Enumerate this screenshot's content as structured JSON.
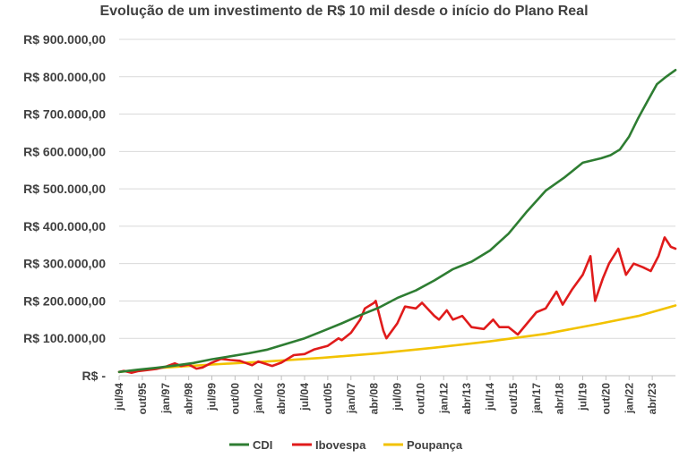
{
  "chart_data": {
    "type": "line",
    "title": "Evolução de um investimento de R$ 10 mil desde o início do Plano Real",
    "xlabel": "",
    "ylabel": "",
    "ylim": [
      0,
      900000
    ],
    "xlim": [
      "1994-07",
      "2024-07"
    ],
    "grid": true,
    "legend": "bottom",
    "y_ticks": [
      {
        "value": 0,
        "label": "R$ -"
      },
      {
        "value": 100000,
        "label": "R$ 100.000,00"
      },
      {
        "value": 200000,
        "label": "R$ 200.000,00"
      },
      {
        "value": 300000,
        "label": "R$ 300.000,00"
      },
      {
        "value": 400000,
        "label": "R$ 400.000,00"
      },
      {
        "value": 500000,
        "label": "R$ 500.000,00"
      },
      {
        "value": 600000,
        "label": "R$ 600.000,00"
      },
      {
        "value": 700000,
        "label": "R$ 700.000,00"
      },
      {
        "value": 800000,
        "label": "R$ 800.000,00"
      },
      {
        "value": 900000,
        "label": "R$ 900.000,00"
      }
    ],
    "x_ticks": [
      {
        "date": "1994-07",
        "label": "jul/94"
      },
      {
        "date": "1995-10",
        "label": "out/95"
      },
      {
        "date": "1997-01",
        "label": "jan/97"
      },
      {
        "date": "1998-04",
        "label": "abr/98"
      },
      {
        "date": "1999-07",
        "label": "jul/99"
      },
      {
        "date": "2000-10",
        "label": "out/00"
      },
      {
        "date": "2002-01",
        "label": "jan/02"
      },
      {
        "date": "2003-04",
        "label": "abr/03"
      },
      {
        "date": "2004-07",
        "label": "jul/04"
      },
      {
        "date": "2005-10",
        "label": "out/05"
      },
      {
        "date": "2007-01",
        "label": "jan/07"
      },
      {
        "date": "2008-04",
        "label": "abr/08"
      },
      {
        "date": "2009-07",
        "label": "jul/09"
      },
      {
        "date": "2010-10",
        "label": "out/10"
      },
      {
        "date": "2012-01",
        "label": "jan/12"
      },
      {
        "date": "2013-04",
        "label": "abr/13"
      },
      {
        "date": "2014-07",
        "label": "jul/14"
      },
      {
        "date": "2015-10",
        "label": "out/15"
      },
      {
        "date": "2017-01",
        "label": "jan/17"
      },
      {
        "date": "2018-04",
        "label": "abr/18"
      },
      {
        "date": "2019-07",
        "label": "jul/19"
      },
      {
        "date": "2020-10",
        "label": "out/20"
      },
      {
        "date": "2022-01",
        "label": "jan/22"
      },
      {
        "date": "2023-04",
        "label": "abr/23"
      }
    ],
    "series": [
      {
        "name": "CDI",
        "color": "#2e7d32",
        "points": [
          [
            "1994-07",
            10000
          ],
          [
            "1995-07",
            16000
          ],
          [
            "1996-07",
            21000
          ],
          [
            "1997-07",
            27000
          ],
          [
            "1998-07",
            34000
          ],
          [
            "1999-07",
            44000
          ],
          [
            "2000-07",
            52000
          ],
          [
            "2001-07",
            60000
          ],
          [
            "2002-07",
            70000
          ],
          [
            "2003-07",
            85000
          ],
          [
            "2004-07",
            100000
          ],
          [
            "2005-07",
            120000
          ],
          [
            "2006-07",
            140000
          ],
          [
            "2007-07",
            162000
          ],
          [
            "2008-07",
            182000
          ],
          [
            "2009-07",
            208000
          ],
          [
            "2010-07",
            228000
          ],
          [
            "2011-07",
            255000
          ],
          [
            "2012-07",
            285000
          ],
          [
            "2013-07",
            305000
          ],
          [
            "2014-07",
            335000
          ],
          [
            "2015-07",
            380000
          ],
          [
            "2016-07",
            440000
          ],
          [
            "2017-07",
            495000
          ],
          [
            "2018-07",
            530000
          ],
          [
            "2019-07",
            570000
          ],
          [
            "2020-07",
            582000
          ],
          [
            "2021-01",
            590000
          ],
          [
            "2021-07",
            605000
          ],
          [
            "2022-01",
            640000
          ],
          [
            "2022-07",
            690000
          ],
          [
            "2023-01",
            735000
          ],
          [
            "2023-07",
            780000
          ],
          [
            "2024-01",
            800000
          ],
          [
            "2024-07",
            818000
          ]
        ]
      },
      {
        "name": "Ibovespa",
        "color": "#e01b1b",
        "points": [
          [
            "1994-07",
            10000
          ],
          [
            "1994-10",
            13000
          ],
          [
            "1995-03",
            8000
          ],
          [
            "1995-07",
            12000
          ],
          [
            "1996-01",
            15000
          ],
          [
            "1996-07",
            18000
          ],
          [
            "1997-01",
            24000
          ],
          [
            "1997-07",
            33000
          ],
          [
            "1997-11",
            26000
          ],
          [
            "1998-04",
            30000
          ],
          [
            "1998-09",
            19000
          ],
          [
            "1999-01",
            22000
          ],
          [
            "1999-07",
            35000
          ],
          [
            "2000-01",
            45000
          ],
          [
            "2000-07",
            42000
          ],
          [
            "2001-01",
            40000
          ],
          [
            "2001-09",
            28000
          ],
          [
            "2002-01",
            38000
          ],
          [
            "2002-10",
            26000
          ],
          [
            "2003-04",
            35000
          ],
          [
            "2003-12",
            55000
          ],
          [
            "2004-07",
            58000
          ],
          [
            "2005-01",
            70000
          ],
          [
            "2005-10",
            80000
          ],
          [
            "2006-05",
            100000
          ],
          [
            "2006-07",
            95000
          ],
          [
            "2007-01",
            115000
          ],
          [
            "2007-07",
            150000
          ],
          [
            "2007-10",
            180000
          ],
          [
            "2008-04",
            195000
          ],
          [
            "2008-05",
            200000
          ],
          [
            "2008-10",
            120000
          ],
          [
            "2008-12",
            100000
          ],
          [
            "2009-07",
            140000
          ],
          [
            "2009-12",
            185000
          ],
          [
            "2010-07",
            180000
          ],
          [
            "2010-11",
            195000
          ],
          [
            "2011-07",
            160000
          ],
          [
            "2011-10",
            150000
          ],
          [
            "2012-03",
            175000
          ],
          [
            "2012-07",
            150000
          ],
          [
            "2013-01",
            160000
          ],
          [
            "2013-07",
            130000
          ],
          [
            "2014-03",
            125000
          ],
          [
            "2014-09",
            150000
          ],
          [
            "2015-01",
            130000
          ],
          [
            "2015-07",
            130000
          ],
          [
            "2016-01",
            110000
          ],
          [
            "2016-07",
            140000
          ],
          [
            "2017-01",
            170000
          ],
          [
            "2017-07",
            180000
          ],
          [
            "2018-02",
            225000
          ],
          [
            "2018-06",
            190000
          ],
          [
            "2018-12",
            230000
          ],
          [
            "2019-07",
            270000
          ],
          [
            "2019-12",
            320000
          ],
          [
            "2020-03",
            200000
          ],
          [
            "2020-08",
            260000
          ],
          [
            "2020-12",
            300000
          ],
          [
            "2021-06",
            340000
          ],
          [
            "2021-11",
            270000
          ],
          [
            "2022-04",
            300000
          ],
          [
            "2022-10",
            290000
          ],
          [
            "2023-03",
            280000
          ],
          [
            "2023-08",
            320000
          ],
          [
            "2023-12",
            370000
          ],
          [
            "2024-04",
            345000
          ],
          [
            "2024-07",
            340000
          ]
        ]
      },
      {
        "name": "Poupança",
        "color": "#f2c200",
        "points": [
          [
            "1994-07",
            10000
          ],
          [
            "1996-07",
            20000
          ],
          [
            "1999-07",
            30000
          ],
          [
            "2002-07",
            38000
          ],
          [
            "2005-07",
            48000
          ],
          [
            "2008-07",
            60000
          ],
          [
            "2011-07",
            75000
          ],
          [
            "2014-07",
            92000
          ],
          [
            "2017-07",
            112000
          ],
          [
            "2020-07",
            140000
          ],
          [
            "2022-07",
            160000
          ],
          [
            "2024-07",
            188000
          ]
        ]
      }
    ]
  }
}
